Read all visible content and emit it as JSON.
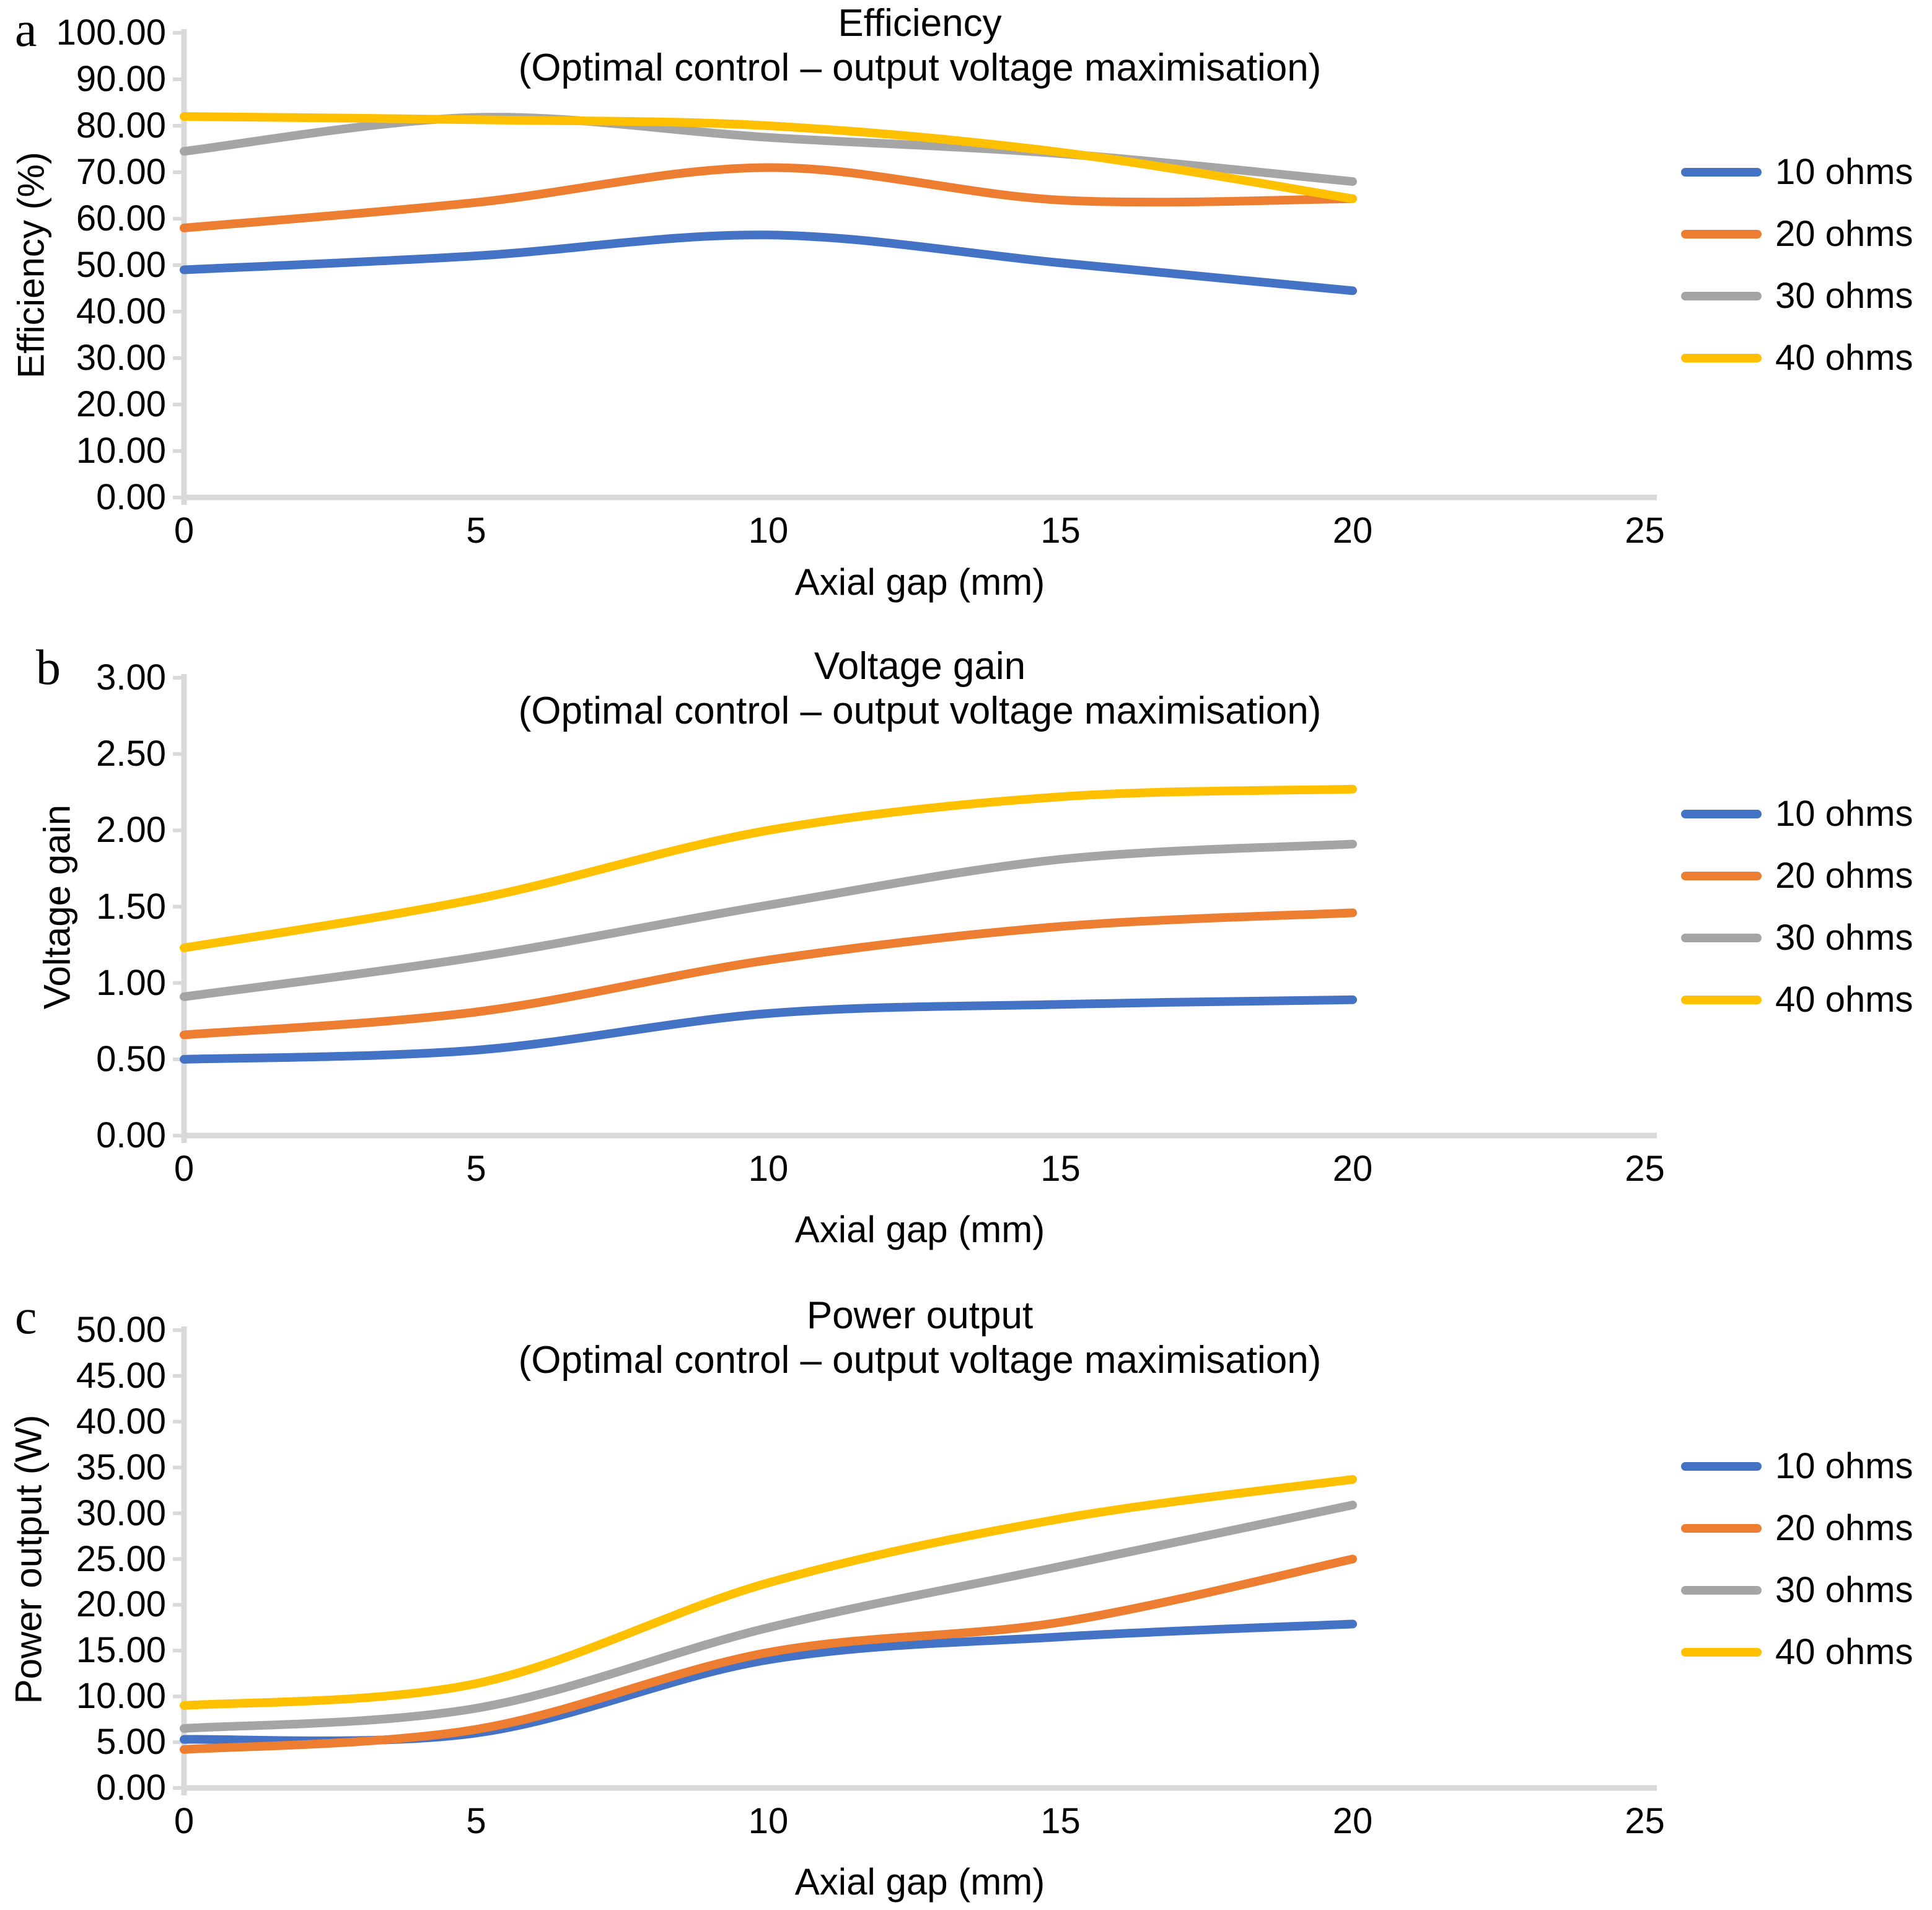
{
  "legend": {
    "items": [
      {
        "label": "10 ohms",
        "color": "#4472C4"
      },
      {
        "label": "20 ohms",
        "color": "#ED7D31"
      },
      {
        "label": "30 ohms",
        "color": "#A5A5A5"
      },
      {
        "label": "40 ohms",
        "color": "#FFC000"
      }
    ]
  },
  "colors": {
    "axis": "#D9D9D9",
    "text": "#000000"
  },
  "chart_data": [
    {
      "type": "line",
      "panel": "a",
      "title": "Efficiency",
      "subtitle": "(Optimal control – output voltage maximisation)",
      "ylabel": "Efficiency (%)",
      "xlabel": "Axial gap (mm)",
      "x": [
        0,
        5,
        10,
        15,
        20
      ],
      "xlim": [
        0,
        25
      ],
      "ylim": [
        0,
        100
      ],
      "grid": false,
      "legend_position": "right",
      "xticks": [
        "0",
        "5",
        "10",
        "15",
        "20",
        "25"
      ],
      "yticks": [
        "0.00",
        "10.00",
        "20.00",
        "30.00",
        "40.00",
        "50.00",
        "60.00",
        "70.00",
        "80.00",
        "90.00",
        "100.00"
      ],
      "series": [
        {
          "name": "10 ohms",
          "color": "#4472C4",
          "values": [
            49.0,
            52.0,
            56.5,
            50.5,
            44.5
          ]
        },
        {
          "name": "20 ohms",
          "color": "#ED7D31",
          "values": [
            58.0,
            63.5,
            71.0,
            64.0,
            64.3
          ]
        },
        {
          "name": "30 ohms",
          "color": "#A5A5A5",
          "values": [
            74.5,
            81.8,
            77.5,
            74.0,
            68.0
          ]
        },
        {
          "name": "40 ohms",
          "color": "#FFC000",
          "values": [
            82.0,
            81.3,
            80.0,
            74.3,
            64.3
          ]
        }
      ]
    },
    {
      "type": "line",
      "panel": "b",
      "title": "Voltage gain",
      "subtitle": "(Optimal control – output voltage maximisation)",
      "ylabel": "Voltage gain",
      "xlabel": "Axial gap (mm)",
      "x": [
        0,
        5,
        10,
        15,
        20
      ],
      "xlim": [
        0,
        25
      ],
      "ylim": [
        0,
        3
      ],
      "grid": false,
      "legend_position": "right",
      "xticks": [
        "0",
        "5",
        "10",
        "15",
        "20",
        "25"
      ],
      "yticks": [
        "0.00",
        "0.50",
        "1.00",
        "1.50",
        "2.00",
        "2.50",
        "3.00"
      ],
      "series": [
        {
          "name": "10 ohms",
          "color": "#4472C4",
          "values": [
            0.5,
            0.56,
            0.8,
            0.86,
            0.89
          ]
        },
        {
          "name": "20 ohms",
          "color": "#ED7D31",
          "values": [
            0.66,
            0.81,
            1.15,
            1.37,
            1.46
          ]
        },
        {
          "name": "30 ohms",
          "color": "#A5A5A5",
          "values": [
            0.91,
            1.17,
            1.51,
            1.81,
            1.91
          ]
        },
        {
          "name": "40 ohms",
          "color": "#FFC000",
          "values": [
            1.23,
            1.55,
            2.0,
            2.22,
            2.27
          ]
        }
      ]
    },
    {
      "type": "line",
      "panel": "c",
      "title": "Power output",
      "subtitle": "(Optimal control – output voltage maximisation)",
      "ylabel": "Power output (W)",
      "xlabel": "Axial gap (mm)",
      "x": [
        0,
        5,
        10,
        15,
        20
      ],
      "xlim": [
        0,
        25
      ],
      "ylim": [
        0,
        50
      ],
      "grid": false,
      "legend_position": "right",
      "xticks": [
        "0",
        "5",
        "10",
        "15",
        "20",
        "25"
      ],
      "yticks": [
        "0.00",
        "5.00",
        "10.00",
        "15.00",
        "20.00",
        "25.00",
        "30.00",
        "35.00",
        "40.00",
        "45.00",
        "50.00"
      ],
      "series": [
        {
          "name": "10 ohms",
          "color": "#4472C4",
          "values": [
            5.3,
            6.0,
            14.0,
            16.5,
            17.9
          ]
        },
        {
          "name": "20 ohms",
          "color": "#ED7D31",
          "values": [
            4.2,
            6.4,
            14.8,
            18.1,
            25.0
          ]
        },
        {
          "name": "30 ohms",
          "color": "#A5A5A5",
          "values": [
            6.5,
            8.7,
            17.5,
            24.2,
            30.9
          ]
        },
        {
          "name": "40 ohms",
          "color": "#FFC000",
          "values": [
            9.0,
            11.4,
            22.4,
            29.4,
            33.7
          ]
        }
      ]
    }
  ]
}
